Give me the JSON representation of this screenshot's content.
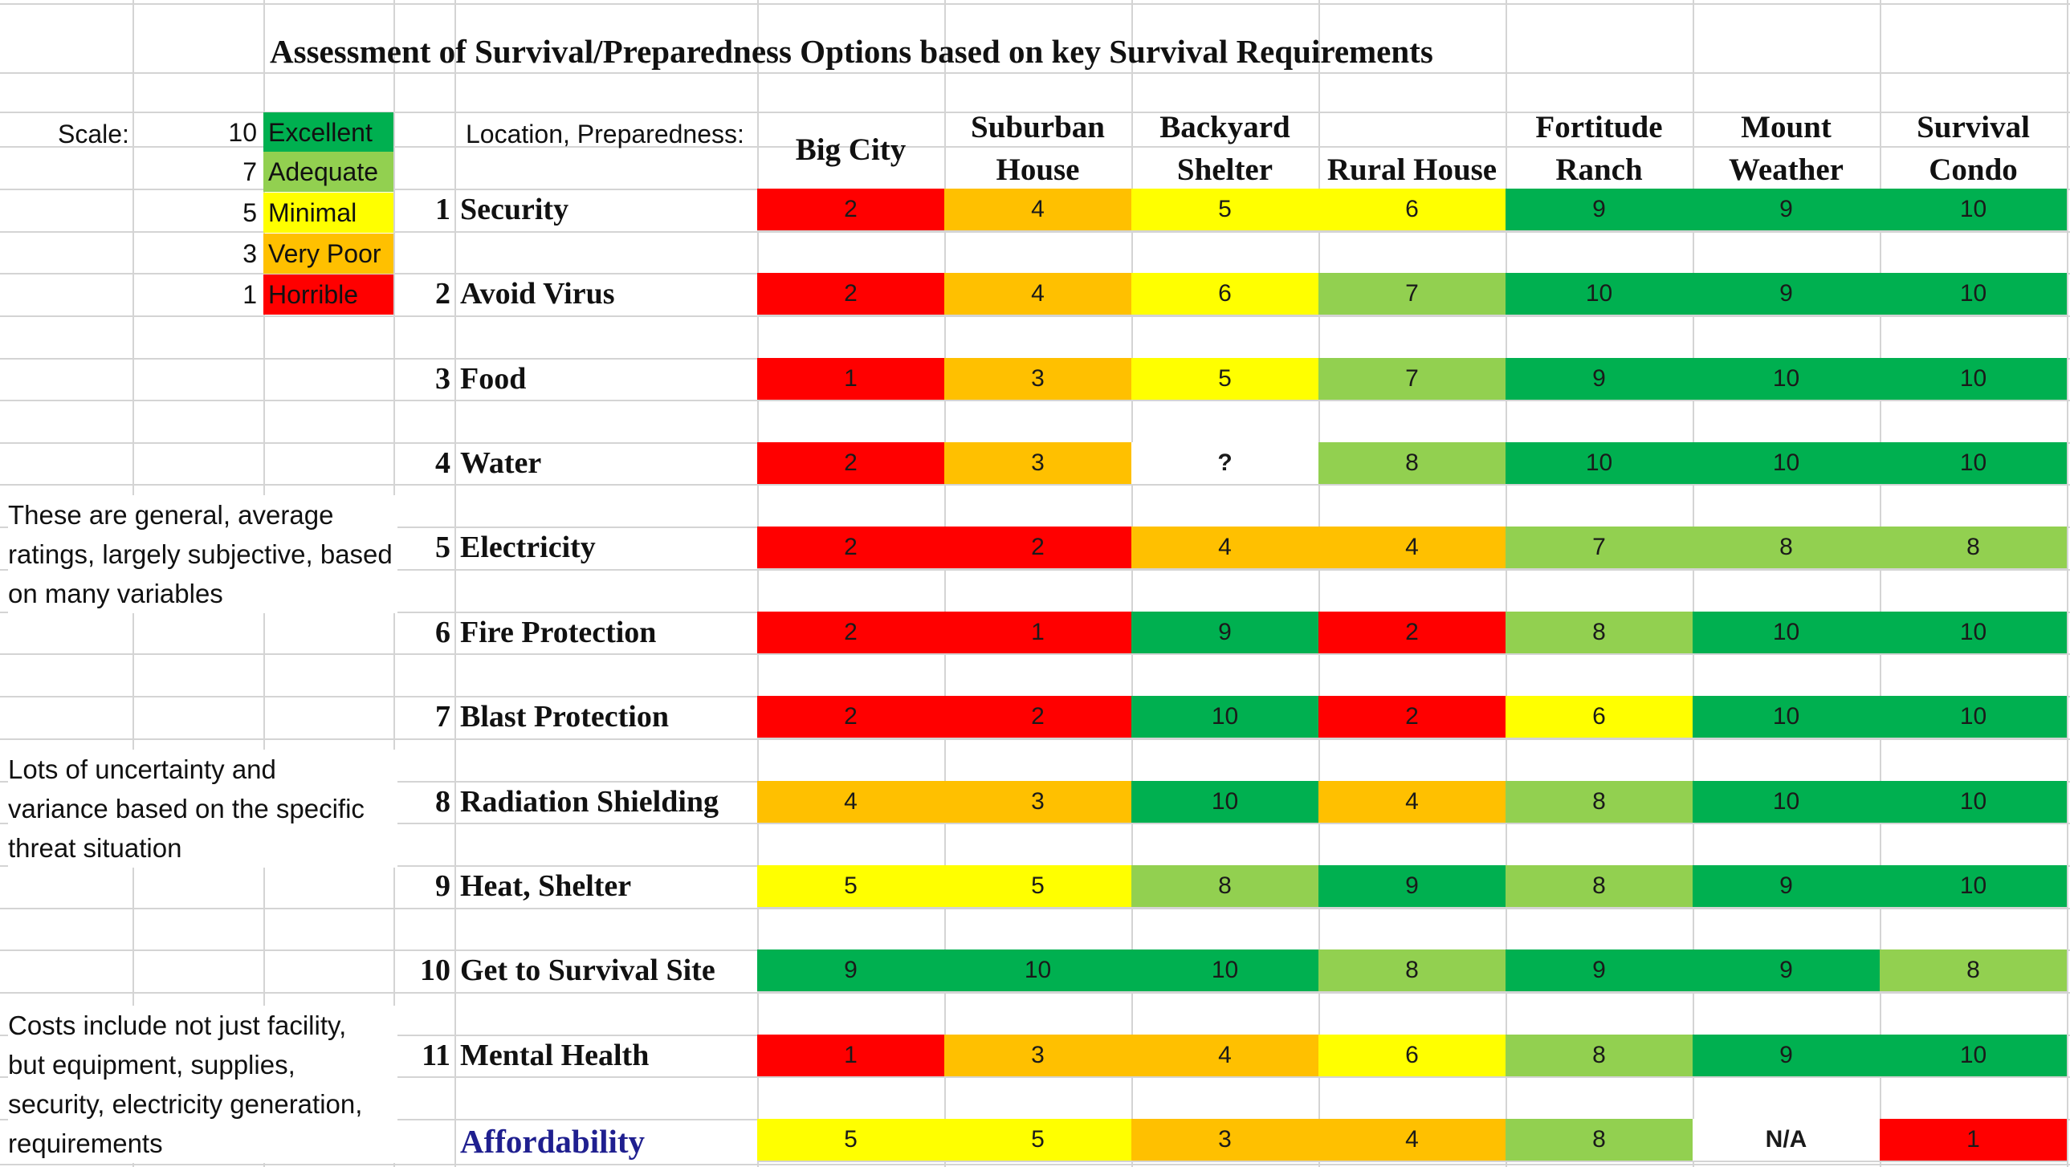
{
  "title": "Assessment of Survival/Preparedness Options based on key Survival Requirements",
  "scale_label": "Scale:",
  "location_label": "Location, Preparedness:",
  "colors": {
    "excellent": "#00b050",
    "adequate": "#92d050",
    "minimal": "#ffff00",
    "very_poor": "#ffc000",
    "horrible": "#ff0000",
    "affordability_text": "#1f1f8f"
  },
  "legend": [
    {
      "value": "10",
      "label": "Excellent",
      "level": "excellent"
    },
    {
      "value": "7",
      "label": "Adequate",
      "level": "adequate"
    },
    {
      "value": "5",
      "label": "Minimal",
      "level": "minimal"
    },
    {
      "value": "3",
      "label": "Very Poor",
      "level": "very_poor"
    },
    {
      "value": "1",
      "label": "Horrible",
      "level": "horrible"
    }
  ],
  "columns": [
    [
      "Big City"
    ],
    [
      "Suburban",
      "House"
    ],
    [
      "Backyard",
      "Shelter"
    ],
    [
      "Rural House"
    ],
    [
      "Fortitude",
      "Ranch"
    ],
    [
      "Mount",
      "Weather"
    ],
    [
      "Survival",
      "Condo"
    ]
  ],
  "notes": [
    [
      "These are general, average",
      "ratings, largely subjective, based",
      "on many variables"
    ],
    [
      "Lots of uncertainty and",
      "variance based on the specific",
      "threat situation"
    ],
    [
      "Costs include not just facility,",
      "but equipment, supplies,",
      "security, electricity generation,",
      "requirements"
    ]
  ],
  "rows": [
    {
      "num": "1",
      "label": "Security",
      "scores": [
        "2",
        "4",
        "5",
        "6",
        "9",
        "9",
        "10"
      ],
      "levels": [
        "horrible",
        "very_poor",
        "minimal",
        "minimal",
        "excellent",
        "excellent",
        "excellent"
      ]
    },
    {
      "num": "2",
      "label": "Avoid Virus",
      "scores": [
        "2",
        "4",
        "6",
        "7",
        "10",
        "9",
        "10"
      ],
      "levels": [
        "horrible",
        "very_poor",
        "minimal",
        "adequate",
        "excellent",
        "excellent",
        "excellent"
      ]
    },
    {
      "num": "3",
      "label": "Food",
      "scores": [
        "1",
        "3",
        "5",
        "7",
        "9",
        "10",
        "10"
      ],
      "levels": [
        "horrible",
        "very_poor",
        "minimal",
        "adequate",
        "excellent",
        "excellent",
        "excellent"
      ]
    },
    {
      "num": "4",
      "label": "Water",
      "scores": [
        "2",
        "3",
        "?",
        "8",
        "10",
        "10",
        "10"
      ],
      "levels": [
        "horrible",
        "very_poor",
        "none",
        "adequate",
        "excellent",
        "excellent",
        "excellent"
      ]
    },
    {
      "num": "5",
      "label": "Electricity",
      "scores": [
        "2",
        "2",
        "4",
        "4",
        "7",
        "8",
        "8"
      ],
      "levels": [
        "horrible",
        "horrible",
        "very_poor",
        "very_poor",
        "adequate",
        "adequate",
        "adequate"
      ]
    },
    {
      "num": "6",
      "label": "Fire Protection",
      "scores": [
        "2",
        "1",
        "9",
        "2",
        "8",
        "10",
        "10"
      ],
      "levels": [
        "horrible",
        "horrible",
        "excellent",
        "horrible",
        "adequate",
        "excellent",
        "excellent"
      ]
    },
    {
      "num": "7",
      "label": "Blast Protection",
      "scores": [
        "2",
        "2",
        "10",
        "2",
        "6",
        "10",
        "10"
      ],
      "levels": [
        "horrible",
        "horrible",
        "excellent",
        "horrible",
        "minimal",
        "excellent",
        "excellent"
      ]
    },
    {
      "num": "8",
      "label": "Radiation Shielding",
      "scores": [
        "4",
        "3",
        "10",
        "4",
        "8",
        "10",
        "10"
      ],
      "levels": [
        "very_poor",
        "very_poor",
        "excellent",
        "very_poor",
        "adequate",
        "excellent",
        "excellent"
      ]
    },
    {
      "num": "9",
      "label": "Heat, Shelter",
      "scores": [
        "5",
        "5",
        "8",
        "9",
        "8",
        "9",
        "10"
      ],
      "levels": [
        "minimal",
        "minimal",
        "adequate",
        "excellent",
        "adequate",
        "excellent",
        "excellent"
      ]
    },
    {
      "num": "10",
      "label": "Get to Survival Site",
      "scores": [
        "9",
        "10",
        "10",
        "8",
        "9",
        "9",
        "8"
      ],
      "levels": [
        "excellent",
        "excellent",
        "excellent",
        "adequate",
        "excellent",
        "excellent",
        "adequate"
      ]
    },
    {
      "num": "11",
      "label": "Mental Health",
      "scores": [
        "1",
        "3",
        "4",
        "6",
        "8",
        "9",
        "10"
      ],
      "levels": [
        "horrible",
        "very_poor",
        "very_poor",
        "minimal",
        "adequate",
        "excellent",
        "excellent"
      ]
    },
    {
      "num": "",
      "label": "Affordability",
      "scores": [
        "5",
        "5",
        "3",
        "4",
        "8",
        "N/A",
        "1"
      ],
      "levels": [
        "minimal",
        "minimal",
        "very_poor",
        "very_poor",
        "adequate",
        "none",
        "horrible"
      ]
    }
  ]
}
